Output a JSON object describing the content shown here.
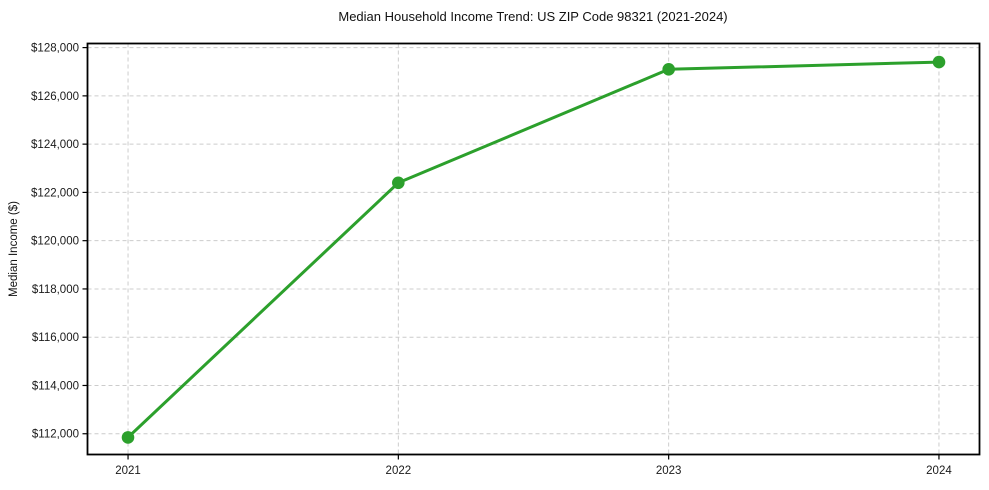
{
  "chart_data": {
    "type": "line",
    "title": "Median Household Income Trend: US ZIP Code 98321 (2021-2024)",
    "xlabel": "",
    "ylabel": "Median Income ($)",
    "x": [
      2021,
      2022,
      2023,
      2024
    ],
    "x_tick_labels": [
      "2021",
      "2022",
      "2023",
      "2024"
    ],
    "series": [
      {
        "name": "median_household_income",
        "values": [
          111850,
          122400,
          127100,
          127400
        ]
      }
    ],
    "y_ticks": [
      112000,
      114000,
      116000,
      118000,
      120000,
      122000,
      124000,
      126000,
      128000
    ],
    "y_tick_labels": [
      "$112,000",
      "$114,000",
      "$116,000",
      "$118,000",
      "$120,000",
      "$122,000",
      "$124,000",
      "$126,000",
      "$128,000"
    ],
    "xlim": [
      2020.85,
      2024.15
    ],
    "ylim": [
      111140,
      128170
    ],
    "grid": true,
    "grid_line_style": "dashed",
    "legend_position": "none",
    "marker": "circle",
    "colors": {
      "line": "#2ca02c",
      "marker": "#2ca02c",
      "grid": "#cccccc",
      "axis": "#000000",
      "text": "#1a1a1a",
      "background": "#ffffff"
    }
  }
}
